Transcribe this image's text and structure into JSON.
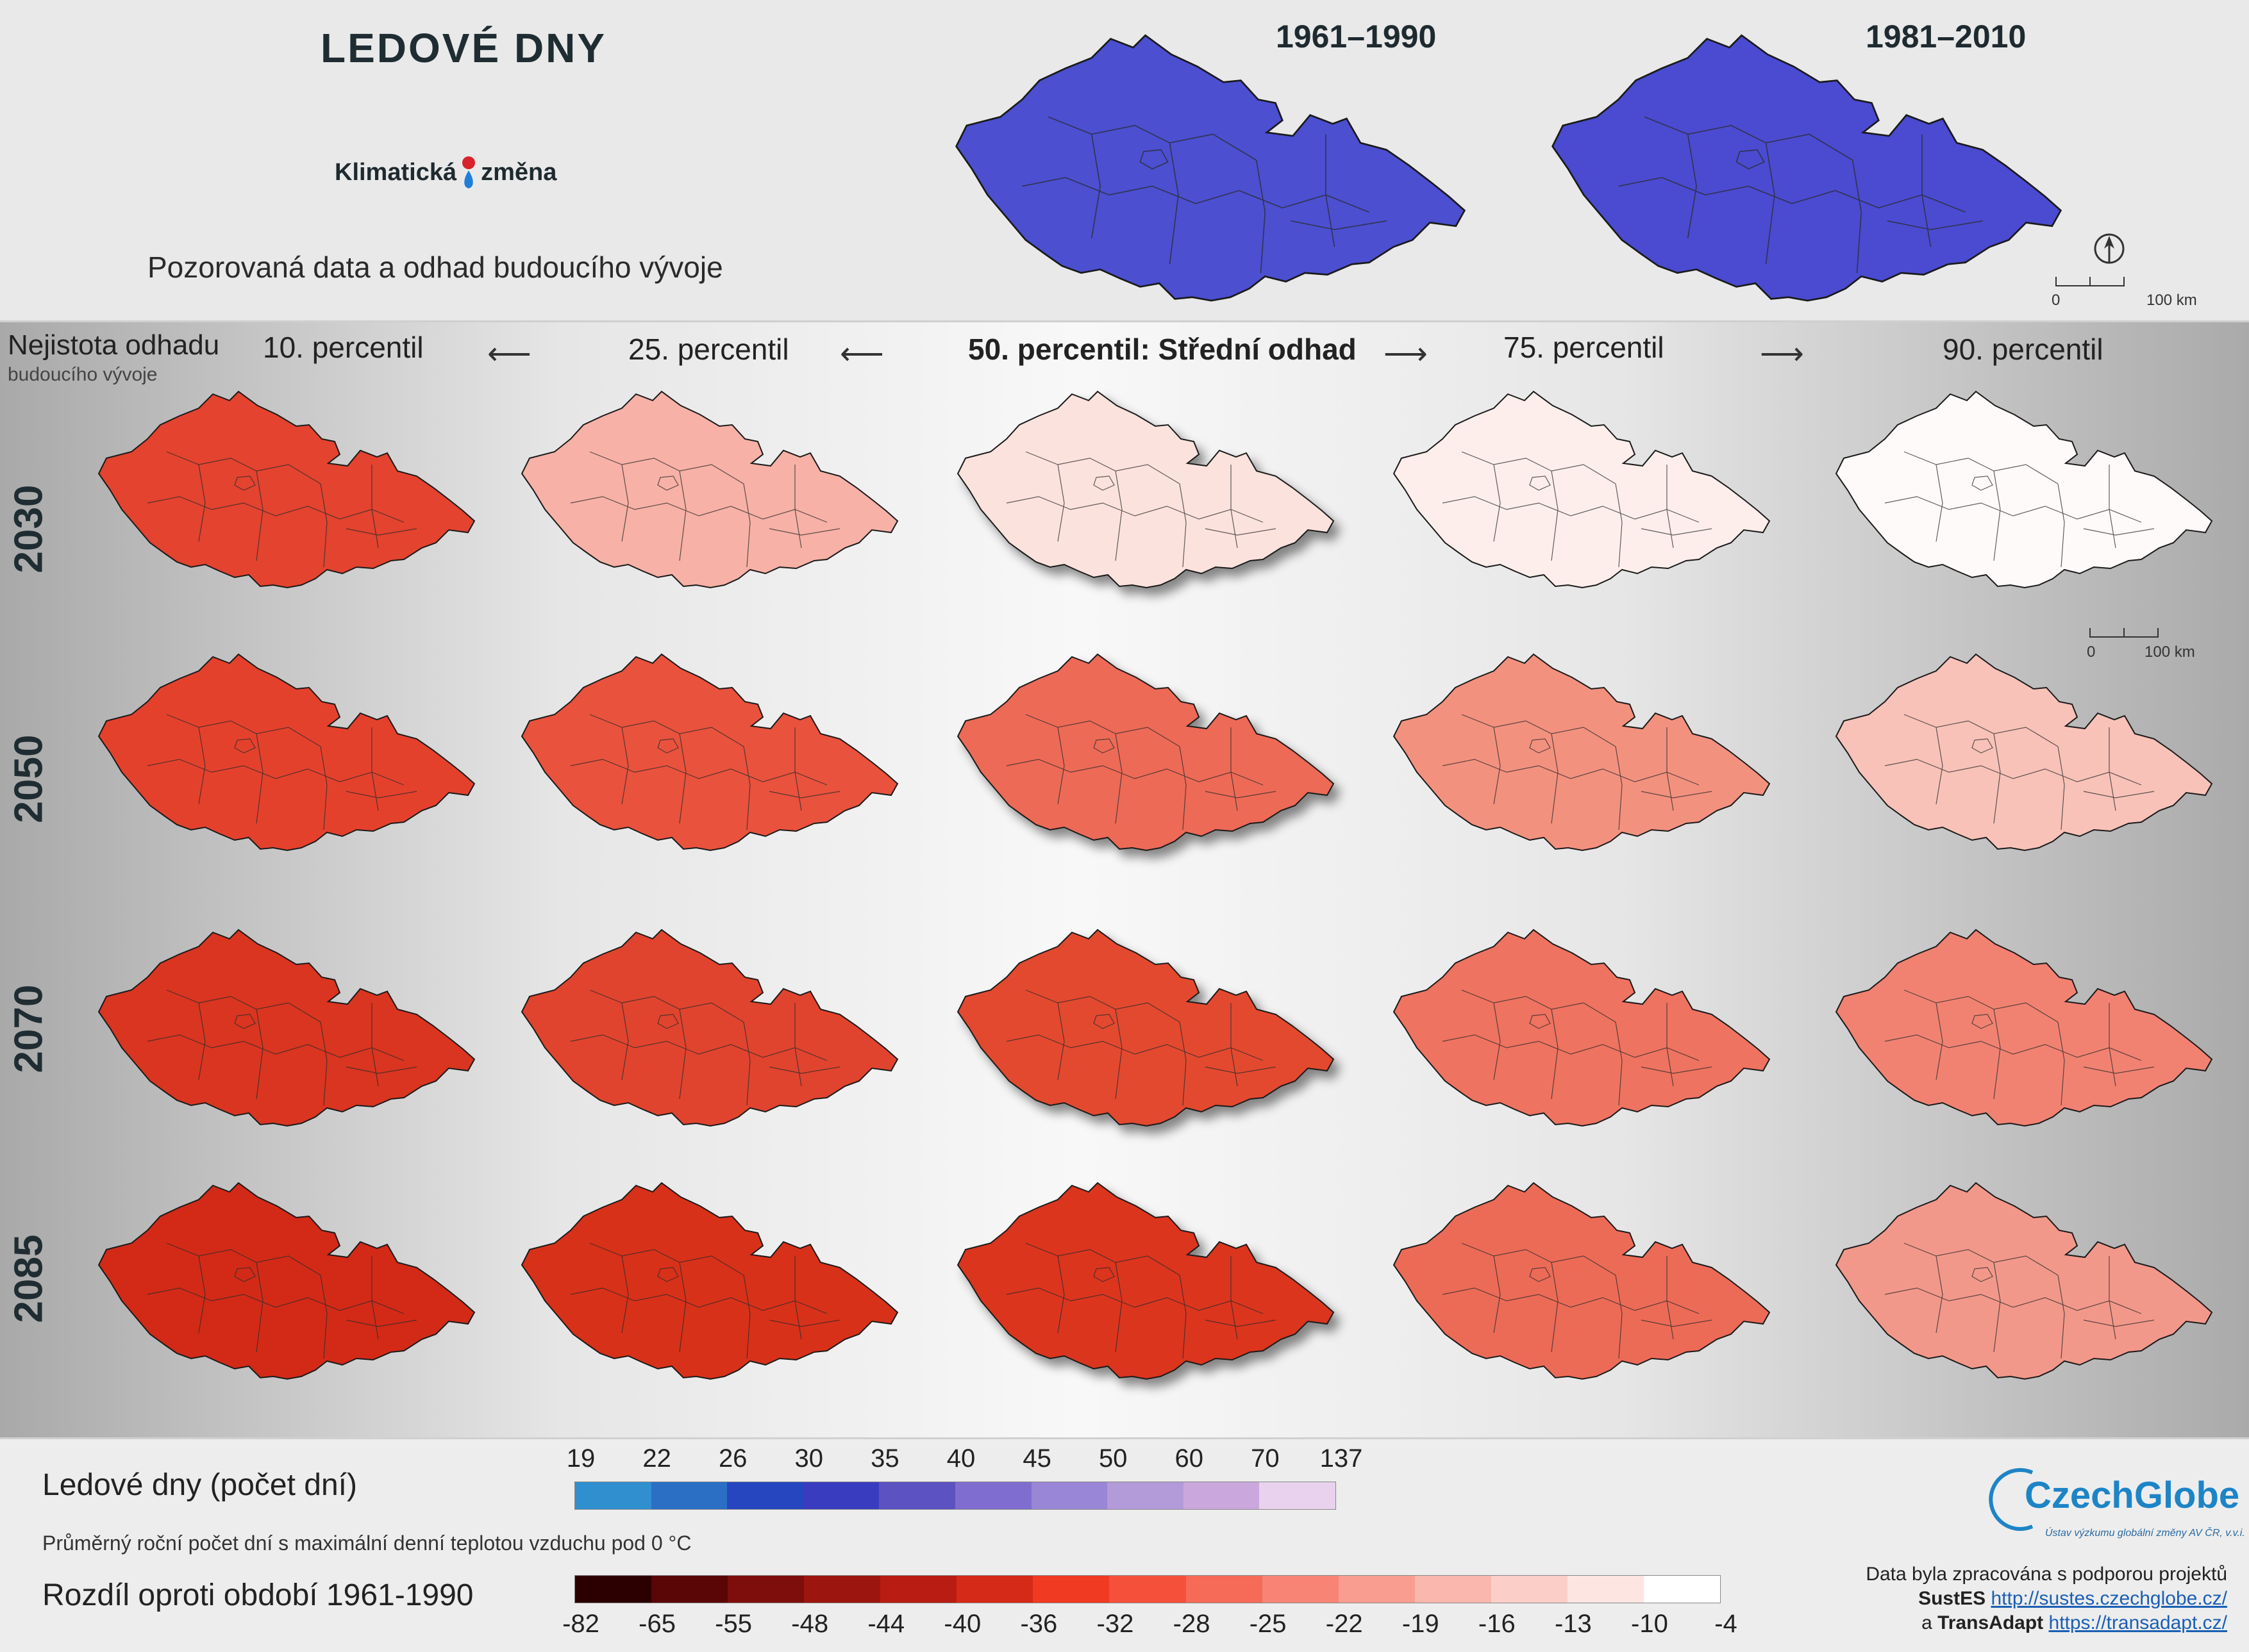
{
  "header": {
    "title": "LEDOVÉ DNY",
    "logo_left": "Klimatická",
    "logo_right": "změna",
    "subtitle": "Pozorovaná data a odhad budoucího vývoje",
    "periods": [
      "1961–1990",
      "1981–2010"
    ],
    "scale_start": "0",
    "scale_end": "100 km"
  },
  "grid": {
    "uncertainty_line1": "Nejistota odhadu",
    "uncertainty_line2": "budoucího vývoje",
    "percentiles": [
      "10. percentil",
      "25. percentil",
      "50. percentil: Střední odhad",
      "75. percentil",
      "90. percentil"
    ],
    "years": [
      "2030",
      "2050",
      "2070",
      "2085"
    ],
    "scale_start": "0",
    "scale_end": "100 km"
  },
  "legend": {
    "observed_title": "Ledové dny (počet dní)",
    "observed_description": "Průměrný roční počet dní s maximální denní teplotou vzduchu pod 0 °C",
    "observed_ticks": [
      "19",
      "22",
      "26",
      "30",
      "35",
      "40",
      "45",
      "50",
      "60",
      "70",
      "137"
    ],
    "observed_colors": [
      "#2f8fcf",
      "#2a6fc4",
      "#2546be",
      "#3a3cc0",
      "#5c52c2",
      "#7f6ed0",
      "#9a86d6",
      "#b39ad9",
      "#caa8dd",
      "#e8d2ee"
    ],
    "diff_title": "Rozdíl oproti období 1961-1990",
    "diff_ticks": [
      "-82",
      "-65",
      "-55",
      "-48",
      "-44",
      "-40",
      "-36",
      "-32",
      "-28",
      "-25",
      "-22",
      "-19",
      "-16",
      "-13",
      "-10",
      "-4"
    ],
    "diff_colors": [
      "#2d0000",
      "#5a0506",
      "#7e0e0c",
      "#9c150f",
      "#b81c12",
      "#d62a18",
      "#f03a22",
      "#f5503a",
      "#f66a58",
      "#f78474",
      "#f89d90",
      "#f9b7ad",
      "#fbcfc8",
      "#fde5e2",
      "#ffffff"
    ]
  },
  "credits": {
    "logo": "CzechGlobe",
    "logo_sub": "Ústav výzkumu globální změny AV ČR, v.v.i.",
    "line1": "Data byla zpracována s podporou projektů",
    "project1": "SustES",
    "url1": "http://sustes.czechglobe.cz/",
    "conj": "a",
    "project2": "TransAdapt",
    "url2": "https://transadapt.cz/"
  },
  "map_colors": {
    "observed": [
      "#4b4fd0",
      "#4a4bd0"
    ],
    "rows": [
      [
        "#e3432f",
        "#f7b1a6",
        "#fce2dd",
        "#fdeeeb",
        "#fefaf9"
      ],
      [
        "#e4412d",
        "#e9523d",
        "#ed6a57",
        "#f3917f",
        "#f8c2b8"
      ],
      [
        "#d93520",
        "#e0442e",
        "#e3492f",
        "#ee7360",
        "#f18272"
      ],
      [
        "#d22a17",
        "#d83119",
        "#db351e",
        "#ec6b57",
        "#f2988a"
      ]
    ]
  }
}
